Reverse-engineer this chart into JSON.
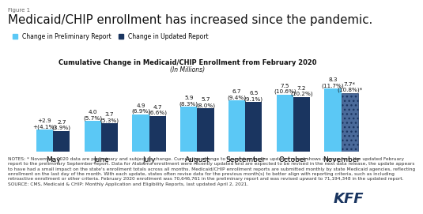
{
  "title_fig": "Figure 1",
  "title_main": "Medicaid/CHIP enrollment has increased since the pandemic.",
  "chart_title": "Cumulative Change in Medicaid/CHIP Enrollment from February 2020",
  "chart_subtitle": "(In Millions)",
  "categories": [
    "May",
    "June",
    "July",
    "August",
    "September",
    "October",
    "November"
  ],
  "preliminary": [
    2.9,
    4.0,
    4.9,
    5.9,
    6.7,
    7.5,
    8.3
  ],
  "updated": [
    2.7,
    3.7,
    4.7,
    5.7,
    6.5,
    7.2,
    7.7
  ],
  "prelim_labels": [
    "+2.9\n+(4.1%)",
    "4.0\n(5.7%)",
    "4.9\n(6.9%)",
    "5.9\n(8.3%)",
    "6.7\n(9.4%)",
    "7.5\n(10.6%)",
    "8.3\n(11.7%)"
  ],
  "updated_labels": [
    "2.7\n(3.9%)",
    "3.7\n(5.3%)",
    "4.7\n(6.6%)",
    "5.7\n(8.0%)",
    "6.5\n(9.1%)",
    "7.2\n(10.2%)",
    "7.7*\n(10.8%)*"
  ],
  "color_preliminary": "#5bc8f5",
  "color_updated": "#1a3560",
  "color_updated_nov": "#4a6a9a",
  "background_color": "#ffffff",
  "legend_prelim": "Change in Preliminary Report",
  "legend_updated": "Change in Updated Report",
  "notes_line1": "NOTES: * November 2020 data are preliminary and subject to change. Cumulative change to November for the updated report shows change from the updated February",
  "notes_line2": "report to the preliminary September report. Data for Alabama enrollment were recently updated and are expected to be revised in the next data release, the update appears",
  "notes_line3": "to have had a small impact on the state's enrollment totals across all months. Medicaid/CHIP enrollment reports are submitted monthly by state Medicaid agencies, reflecting",
  "notes_line4": "enrollment on the last day of the month. With each update, states often revise data for the previous month(s) to better align with reporting criteria, such as including",
  "notes_line5": "retroactive enrollment or other criteria. February 2020 enrollment was 70,646,761 in the preliminary report and was revised upward to 71,194,348 in the updated report.",
  "notes_line6": "SOURCE: CMS, Medicaid & CHIP: Monthly Application and Eligibility Reports, last updated April 2, 2021.",
  "ylim": [
    0,
    10.5
  ],
  "bar_width": 0.35,
  "label_fontsize": 5.2,
  "axis_fontsize": 6.5,
  "notes_fontsize": 4.2
}
